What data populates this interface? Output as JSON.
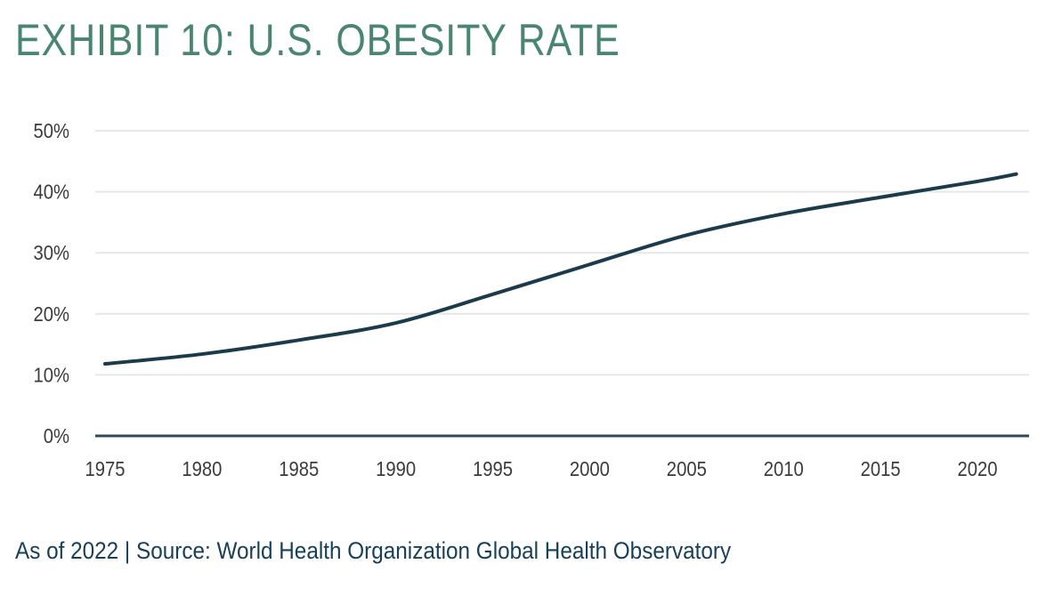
{
  "title": "EXHIBIT 10: U.S. OBESITY RATE",
  "footer": "As of 2022 | Source: World Health Organization Global Health Observatory",
  "colors": {
    "title": "#4a8570",
    "line": "#1b3a4b",
    "grid": "#e3e8ea",
    "axis": "#2e4a5a",
    "footer": "#163f5a"
  },
  "chart_data": {
    "type": "line",
    "title": "EXHIBIT 10: U.S. OBESITY RATE",
    "xlabel": "",
    "ylabel": "",
    "x": [
      1975,
      1980,
      1985,
      1990,
      1995,
      2000,
      2005,
      2010,
      2015,
      2020,
      2022
    ],
    "series": [
      {
        "name": "U.S. Obesity Rate",
        "values": [
          11.8,
          13.4,
          15.7,
          18.5,
          23.2,
          28.1,
          32.9,
          36.4,
          39.1,
          41.7,
          42.9
        ]
      }
    ],
    "xlim": [
      1975,
      2022
    ],
    "ylim": [
      0,
      50
    ],
    "xticks": [
      1975,
      1980,
      1985,
      1990,
      1995,
      2000,
      2005,
      2010,
      2015,
      2020
    ],
    "xtick_labels": [
      "1975",
      "1980",
      "1985",
      "1990",
      "1995",
      "2000",
      "2005",
      "2010",
      "2015",
      "2020"
    ],
    "yticks": [
      0,
      10,
      20,
      30,
      40,
      50
    ],
    "ytick_labels": [
      "0%",
      "10%",
      "20%",
      "30%",
      "40%",
      "50%"
    ],
    "grid": true,
    "legend": "none",
    "units": "percent"
  }
}
